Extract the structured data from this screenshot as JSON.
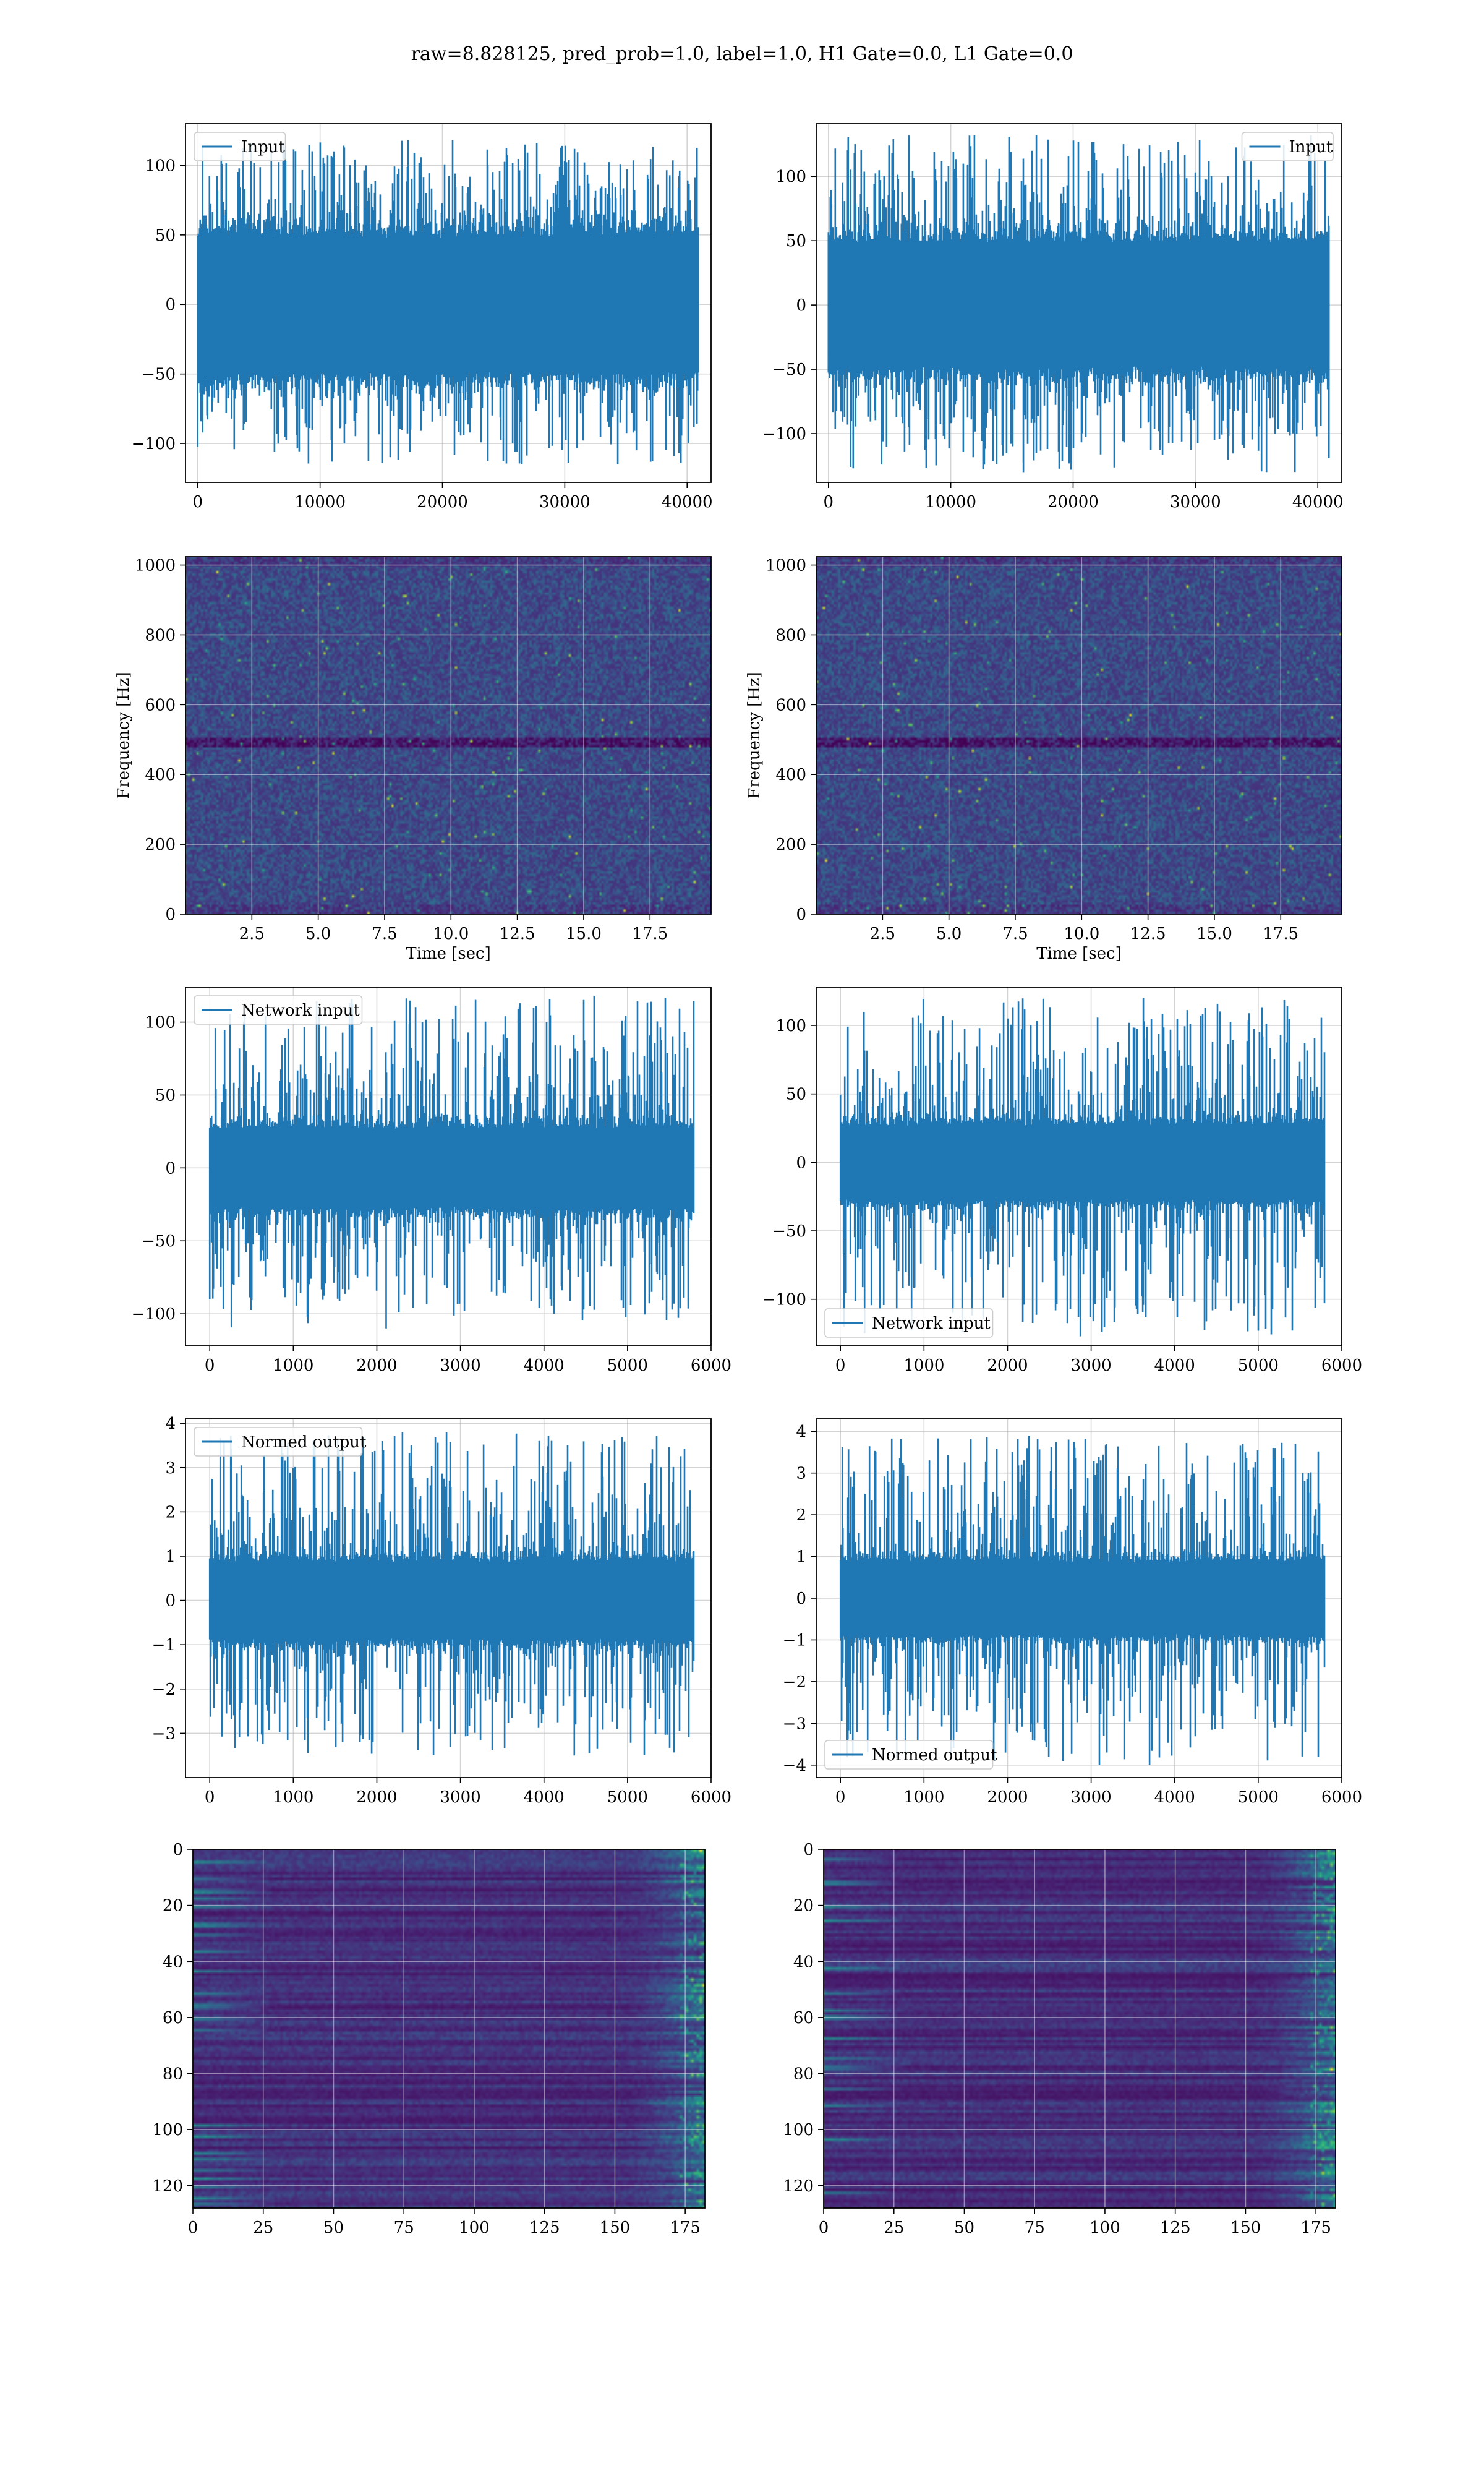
{
  "suptitle": "raw=8.828125, pred_prob=1.0, label=1.0, H1 Gate=0.0, L1 Gate=0.0",
  "colors": {
    "series": "#1f77b4",
    "grid": "#b0b0b0",
    "viridis_low": "#440154",
    "viridis_high": "#fde725"
  },
  "chart_data": [
    {
      "id": "input-h1",
      "type": "line",
      "legend": {
        "label": "Input",
        "loc": "upper left"
      },
      "xlim": [
        -1000,
        41960
      ],
      "ylim": [
        -128,
        130
      ],
      "xticks": [
        0,
        10000,
        20000,
        30000,
        40000
      ],
      "yticks": [
        -100,
        -50,
        0,
        50,
        100
      ],
      "n_samples": 40960,
      "amplitude": {
        "core": 50,
        "outlier_max": 118,
        "outlier_min": -115
      },
      "seed": 11
    },
    {
      "id": "input-l1",
      "type": "line",
      "legend": {
        "label": "Input",
        "loc": "upper right"
      },
      "xlim": [
        -1000,
        41960
      ],
      "ylim": [
        -138,
        141
      ],
      "xticks": [
        0,
        10000,
        20000,
        30000,
        40000
      ],
      "yticks": [
        -100,
        -50,
        0,
        50,
        100
      ],
      "n_samples": 40960,
      "amplitude": {
        "core": 50,
        "outlier_max": 132,
        "outlier_min": -130
      },
      "seed": 23
    },
    {
      "id": "spec-h1",
      "type": "heatmap",
      "xlabel": "Time [sec]",
      "ylabel": "Frequency [Hz]",
      "xlim": [
        0,
        19.8
      ],
      "ylim": [
        0,
        1024
      ],
      "xticks": [
        2.5,
        5.0,
        7.5,
        10.0,
        12.5,
        15.0,
        17.5
      ],
      "xtick_labels": [
        "2.5",
        "5.0",
        "7.5",
        "10.0",
        "12.5",
        "15.0",
        "17.5"
      ],
      "yticks": [
        0,
        200,
        400,
        600,
        800,
        1000
      ],
      "seed": 37
    },
    {
      "id": "spec-l1",
      "type": "heatmap",
      "xlabel": "Time [sec]",
      "ylabel": "Frequency [Hz]",
      "xlim": [
        0,
        19.8
      ],
      "ylim": [
        0,
        1024
      ],
      "xticks": [
        2.5,
        5.0,
        7.5,
        10.0,
        12.5,
        15.0,
        17.5
      ],
      "xtick_labels": [
        "2.5",
        "5.0",
        "7.5",
        "10.0",
        "12.5",
        "15.0",
        "17.5"
      ],
      "yticks": [
        0,
        200,
        400,
        600,
        800,
        1000
      ],
      "seed": 41
    },
    {
      "id": "net-h1",
      "type": "line",
      "legend": {
        "label": "Network input",
        "loc": "upper left"
      },
      "xlim": [
        -290,
        6000
      ],
      "ylim": [
        -122,
        124
      ],
      "xticks": [
        0,
        1000,
        2000,
        3000,
        4000,
        5000,
        6000
      ],
      "yticks": [
        -100,
        -50,
        0,
        50,
        100
      ],
      "n_samples": 5800,
      "amplitude": {
        "core": 28,
        "outlier_max": 118,
        "outlier_min": -110
      },
      "seed": 53
    },
    {
      "id": "net-l1",
      "type": "line",
      "legend": {
        "label": "Network input",
        "loc": "lower left"
      },
      "xlim": [
        -290,
        6000
      ],
      "ylim": [
        -134,
        128
      ],
      "xticks": [
        0,
        1000,
        2000,
        3000,
        4000,
        5000,
        6000
      ],
      "yticks": [
        -100,
        -50,
        0,
        50,
        100
      ],
      "n_samples": 5800,
      "amplitude": {
        "core": 28,
        "outlier_max": 120,
        "outlier_min": -127
      },
      "seed": 61
    },
    {
      "id": "norm-h1",
      "type": "line",
      "legend": {
        "label": "Normed output",
        "loc": "upper left"
      },
      "xlim": [
        -290,
        6000
      ],
      "ylim": [
        -4.0,
        4.1
      ],
      "xticks": [
        0,
        1000,
        2000,
        3000,
        4000,
        5000,
        6000
      ],
      "yticks": [
        -3,
        -2,
        -1,
        0,
        1,
        2,
        3,
        4
      ],
      "n_samples": 5800,
      "amplitude": {
        "core": 0.9,
        "outlier_max": 3.8,
        "outlier_min": -3.5
      },
      "seed": 71
    },
    {
      "id": "norm-l1",
      "type": "line",
      "legend": {
        "label": "Normed output",
        "loc": "lower left"
      },
      "xlim": [
        -290,
        6000
      ],
      "ylim": [
        -4.3,
        4.3
      ],
      "xticks": [
        0,
        1000,
        2000,
        3000,
        4000,
        5000,
        6000
      ],
      "yticks": [
        -4,
        -3,
        -2,
        -1,
        0,
        1,
        2,
        3,
        4
      ],
      "n_samples": 5800,
      "amplitude": {
        "core": 0.9,
        "outlier_max": 3.9,
        "outlier_min": -4.0
      },
      "seed": 83
    },
    {
      "id": "feat-h1",
      "type": "heatmap",
      "xlim": [
        0,
        182
      ],
      "ylim": [
        128,
        0
      ],
      "xticks": [
        0,
        25,
        50,
        75,
        100,
        125,
        150,
        175
      ],
      "yticks": [
        0,
        20,
        40,
        60,
        80,
        100,
        120
      ],
      "seed": 97
    },
    {
      "id": "feat-l1",
      "type": "heatmap",
      "xlim": [
        0,
        182
      ],
      "ylim": [
        128,
        0
      ],
      "xticks": [
        0,
        25,
        50,
        75,
        100,
        125,
        150,
        175
      ],
      "yticks": [
        0,
        20,
        40,
        60,
        80,
        100,
        120
      ],
      "seed": 103
    }
  ]
}
